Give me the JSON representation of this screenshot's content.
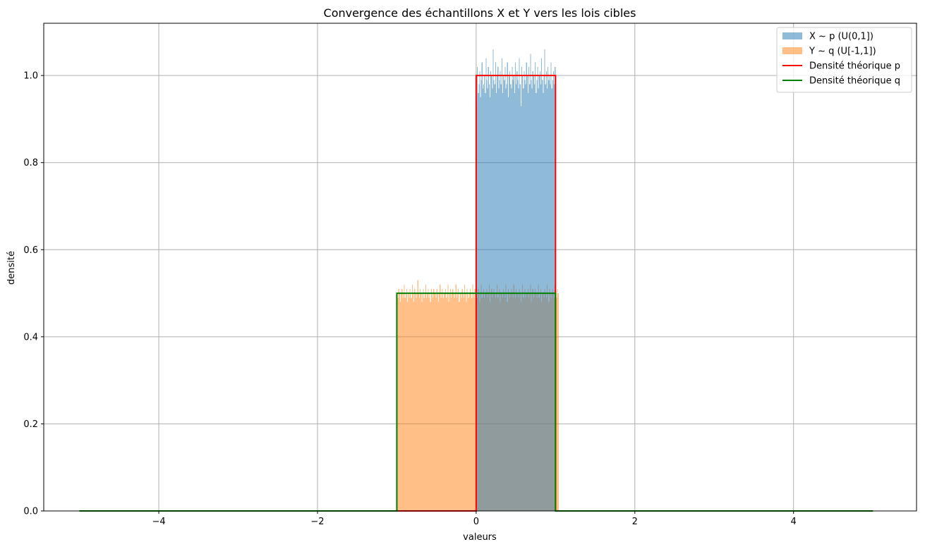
{
  "chart_data": {
    "type": "histogram",
    "title": "Convergence des échantillons X et Y vers les lois cibles",
    "xlabel": "valeurs",
    "ylabel": "densité",
    "xlim": [
      -5.45,
      5.55
    ],
    "ylim": [
      0,
      1.12
    ],
    "xticks": [
      -4,
      -2,
      0,
      2,
      4
    ],
    "xtick_labels": [
      "−4",
      "−2",
      "0",
      "2",
      "4"
    ],
    "yticks": [
      0,
      0.2,
      0.4,
      0.6,
      0.8,
      1.0
    ],
    "ytick_labels": [
      "0.0",
      "0.2",
      "0.4",
      "0.6",
      "0.8",
      "1.0"
    ],
    "grid": true,
    "legend_position": "top-right",
    "series": [
      {
        "name": "X ~ p (U(0,1])",
        "kind": "histogram",
        "color": "#1f77b4",
        "alpha": 0.5,
        "range": [
          0,
          1
        ],
        "bins": 100,
        "density_values": [
          0.93,
          1.02,
          0.96,
          0.98,
          1.01,
          0.95,
          0.99,
          1.03,
          0.97,
          0.98,
          1.0,
          0.96,
          1.04,
          0.99,
          0.97,
          1.02,
          0.98,
          0.95,
          1.01,
          1.0,
          0.97,
          1.06,
          0.99,
          0.98,
          1.03,
          0.96,
          1.0,
          1.02,
          0.97,
          0.99,
          1.01,
          0.98,
          1.04,
          0.96,
          1.0,
          0.99,
          1.02,
          0.97,
          0.98,
          1.03,
          0.95,
          1.0,
          1.01,
          0.98,
          0.97,
          1.02,
          0.99,
          1.0,
          0.96,
          1.03,
          0.98,
          1.01,
          0.99,
          0.97,
          1.04,
          0.98,
          0.93,
          1.02,
          1.0,
          0.97,
          1.01,
          0.99,
          0.98,
          1.03,
          1.0,
          0.96,
          1.02,
          0.98,
          1.05,
          0.99,
          0.97,
          1.01,
          1.0,
          0.98,
          1.03,
          0.96,
          0.99,
          1.02,
          0.97,
          1.0,
          1.01,
          0.98,
          1.04,
          0.99,
          0.96,
          1.0,
          1.06,
          0.98,
          1.01,
          0.97,
          1.02,
          0.99,
          1.0,
          0.98,
          1.03,
          0.97,
          0.99,
          1.01,
          0.98,
          1.02
        ]
      },
      {
        "name": "Y ~ q (U[-1,1])",
        "kind": "histogram",
        "color": "#ff7f0e",
        "alpha": 0.5,
        "range": [
          -1,
          1
        ],
        "bins": 200,
        "density_values": [
          0.5,
          0.49,
          0.51,
          0.5,
          0.48,
          0.5,
          0.51,
          0.49,
          0.5,
          0.52,
          0.49,
          0.5,
          0.51,
          0.48,
          0.5,
          0.49,
          0.51,
          0.5,
          0.49,
          0.52,
          0.5,
          0.48,
          0.51,
          0.5,
          0.49,
          0.5,
          0.53,
          0.5,
          0.49,
          0.51,
          0.5,
          0.48,
          0.5,
          0.51,
          0.49,
          0.5,
          0.52,
          0.49,
          0.5,
          0.51,
          0.49,
          0.5,
          0.48,
          0.51,
          0.5,
          0.49,
          0.51,
          0.5,
          0.5,
          0.49,
          0.51,
          0.5,
          0.48,
          0.5,
          0.52,
          0.49,
          0.5,
          0.51,
          0.49,
          0.5,
          0.5,
          0.51,
          0.49,
          0.5,
          0.52,
          0.48,
          0.5,
          0.51,
          0.49,
          0.5,
          0.51,
          0.5,
          0.49,
          0.5,
          0.52,
          0.49,
          0.5,
          0.51,
          0.48,
          0.5,
          0.5,
          0.49,
          0.51,
          0.5,
          0.49,
          0.52,
          0.5,
          0.48,
          0.51,
          0.5,
          0.49,
          0.5,
          0.51,
          0.5,
          0.49,
          0.52,
          0.5,
          0.49,
          0.51,
          0.5,
          0.5,
          0.49,
          0.51,
          0.5,
          0.48,
          0.5,
          0.52,
          0.49,
          0.5,
          0.51,
          0.49,
          0.5,
          0.5,
          0.51,
          0.49,
          0.5,
          0.52,
          0.48,
          0.5,
          0.51,
          0.49,
          0.5,
          0.51,
          0.5,
          0.49,
          0.5,
          0.52,
          0.49,
          0.5,
          0.51,
          0.48,
          0.5,
          0.5,
          0.49,
          0.51,
          0.5,
          0.49,
          0.52,
          0.5,
          0.48,
          0.51,
          0.5,
          0.49,
          0.5,
          0.51,
          0.5,
          0.49,
          0.52,
          0.5,
          0.49,
          0.51,
          0.5,
          0.5,
          0.49,
          0.51,
          0.5,
          0.48,
          0.5,
          0.52,
          0.49,
          0.5,
          0.51,
          0.49,
          0.5,
          0.5,
          0.51,
          0.49,
          0.5,
          0.52,
          0.48,
          0.5,
          0.51,
          0.49,
          0.5,
          0.51,
          0.5,
          0.49,
          0.5,
          0.52,
          0.49,
          0.5,
          0.51,
          0.48,
          0.5,
          0.5,
          0.49,
          0.51,
          0.5,
          0.49,
          0.52,
          0.5,
          0.48,
          0.51,
          0.5,
          0.49,
          0.5,
          0.51,
          0.5,
          0.49,
          0.52,
          0.5,
          0.49,
          0.51,
          0.5
        ]
      },
      {
        "name": "Densité théorique p",
        "kind": "line",
        "color": "#ff0000",
        "x": [
          -5,
          0,
          0,
          1,
          1,
          5
        ],
        "y": [
          0,
          0,
          1,
          1,
          0,
          0
        ]
      },
      {
        "name": "Densité théorique q",
        "kind": "line",
        "color": "#008000",
        "x": [
          -5,
          -1,
          -1,
          1,
          1,
          5
        ],
        "y": [
          0,
          0,
          0.5,
          0.5,
          0,
          0
        ]
      }
    ]
  }
}
